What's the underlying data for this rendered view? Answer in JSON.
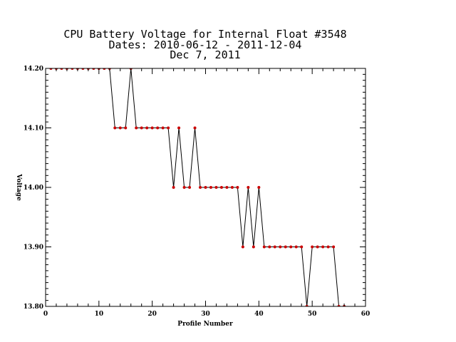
{
  "chart_data": {
    "type": "line",
    "title_lines": [
      "CPU Battery Voltage for Internal Float #3548",
      "Dates:  2010-06-12 -  2011-12-04",
      "Dec  7, 2011"
    ],
    "xlabel": "Profile Number",
    "ylabel": "Voltage",
    "xlim": [
      0,
      60
    ],
    "ylim": [
      13.8,
      14.2
    ],
    "xticks": [
      0,
      10,
      20,
      30,
      40,
      50,
      60
    ],
    "xtick_labels": [
      "0",
      "10",
      "20",
      "30",
      "40",
      "50",
      "60"
    ],
    "yticks": [
      13.8,
      13.9,
      14.0,
      14.1,
      14.2
    ],
    "ytick_labels": [
      "13.80",
      "13.90",
      "14.00",
      "14.10",
      "14.20"
    ],
    "grid": false,
    "line_color": "#000000",
    "marker_color": "#cc0000",
    "x": [
      1,
      2,
      3,
      4,
      5,
      6,
      7,
      8,
      9,
      10,
      11,
      12,
      13,
      14,
      15,
      16,
      17,
      18,
      19,
      20,
      21,
      22,
      23,
      24,
      25,
      26,
      27,
      28,
      29,
      30,
      31,
      32,
      33,
      34,
      35,
      36,
      37,
      38,
      39,
      40,
      41,
      42,
      43,
      44,
      45,
      46,
      47,
      48,
      49,
      50,
      51,
      52,
      53,
      54,
      55,
      56
    ],
    "y": [
      14.2,
      14.2,
      14.2,
      14.2,
      14.2,
      14.2,
      14.2,
      14.2,
      14.2,
      14.2,
      14.2,
      14.2,
      14.1,
      14.1,
      14.1,
      14.2,
      14.1,
      14.1,
      14.1,
      14.1,
      14.1,
      14.1,
      14.1,
      14.0,
      14.1,
      14.0,
      14.0,
      14.1,
      14.0,
      14.0,
      14.0,
      14.0,
      14.0,
      14.0,
      14.0,
      14.0,
      13.9,
      14.0,
      13.9,
      14.0,
      13.9,
      13.9,
      13.9,
      13.9,
      13.9,
      13.9,
      13.9,
      13.9,
      13.8,
      13.9,
      13.9,
      13.9,
      13.9,
      13.9,
      13.8,
      13.8
    ]
  }
}
